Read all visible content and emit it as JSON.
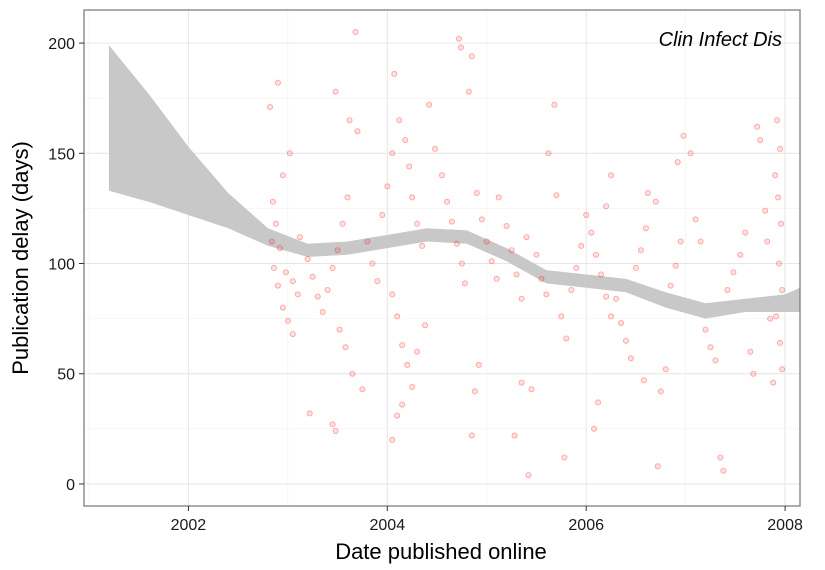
{
  "chart_data": {
    "type": "scatter",
    "title": "",
    "annotation": "Clin Infect Dis",
    "xlabel": "Date published online",
    "ylabel": "Publication delay (days)",
    "xlim": [
      2000.95,
      2008.15
    ],
    "ylim": [
      -10,
      215
    ],
    "x_ticks": [
      {
        "value": 2002,
        "label": "2002"
      },
      {
        "value": 2004,
        "label": "2004"
      },
      {
        "value": 2006,
        "label": "2006"
      },
      {
        "value": 2008,
        "label": "2008"
      }
    ],
    "y_ticks": [
      {
        "value": 0,
        "label": "0"
      },
      {
        "value": 50,
        "label": "50"
      },
      {
        "value": 100,
        "label": "100"
      },
      {
        "value": 150,
        "label": "150"
      },
      {
        "value": 200,
        "label": "200"
      }
    ],
    "grid": true,
    "point_color": "#ff0000",
    "band_color": "#c8c8c8",
    "smooth_band": [
      {
        "x": 2001.2,
        "lo": 133,
        "hi": 199
      },
      {
        "x": 2001.6,
        "lo": 128,
        "hi": 177
      },
      {
        "x": 2002.0,
        "lo": 122,
        "hi": 153
      },
      {
        "x": 2002.4,
        "lo": 116,
        "hi": 132
      },
      {
        "x": 2002.8,
        "lo": 108,
        "hi": 116
      },
      {
        "x": 2003.2,
        "lo": 103,
        "hi": 109
      },
      {
        "x": 2003.6,
        "lo": 104,
        "hi": 110
      },
      {
        "x": 2004.0,
        "lo": 107,
        "hi": 113
      },
      {
        "x": 2004.4,
        "lo": 110,
        "hi": 116
      },
      {
        "x": 2004.8,
        "lo": 109,
        "hi": 115
      },
      {
        "x": 2005.2,
        "lo": 101,
        "hi": 107
      },
      {
        "x": 2005.6,
        "lo": 91,
        "hi": 97
      },
      {
        "x": 2006.0,
        "lo": 89,
        "hi": 95
      },
      {
        "x": 2006.4,
        "lo": 87,
        "hi": 93
      },
      {
        "x": 2006.8,
        "lo": 80,
        "hi": 87
      },
      {
        "x": 2007.2,
        "lo": 75,
        "hi": 82
      },
      {
        "x": 2007.6,
        "lo": 78,
        "hi": 84
      },
      {
        "x": 2008.0,
        "lo": 78,
        "hi": 86
      },
      {
        "x": 2008.15,
        "lo": 78,
        "hi": 89
      }
    ],
    "points": [
      [
        2002.82,
        171
      ],
      [
        2002.9,
        182
      ],
      [
        2002.95,
        140
      ],
      [
        2003.02,
        150
      ],
      [
        2002.85,
        128
      ],
      [
        2002.88,
        118
      ],
      [
        2002.92,
        107
      ],
      [
        2002.98,
        96
      ],
      [
        2003.05,
        92
      ],
      [
        2003.1,
        86
      ],
      [
        2002.86,
        98
      ],
      [
        2002.9,
        90
      ],
      [
        2002.95,
        80
      ],
      [
        2003.0,
        74
      ],
      [
        2003.05,
        68
      ],
      [
        2002.84,
        110
      ],
      [
        2003.12,
        112
      ],
      [
        2003.2,
        102
      ],
      [
        2003.25,
        94
      ],
      [
        2003.3,
        85
      ],
      [
        2003.22,
        32
      ],
      [
        2003.35,
        78
      ],
      [
        2003.4,
        88
      ],
      [
        2003.45,
        98
      ],
      [
        2003.5,
        106
      ],
      [
        2003.55,
        118
      ],
      [
        2003.6,
        130
      ],
      [
        2003.62,
        165
      ],
      [
        2003.7,
        160
      ],
      [
        2003.48,
        178
      ],
      [
        2003.52,
        70
      ],
      [
        2003.58,
        62
      ],
      [
        2003.65,
        50
      ],
      [
        2003.75,
        43
      ],
      [
        2003.45,
        27
      ],
      [
        2003.48,
        24
      ],
      [
        2003.68,
        205
      ],
      [
        2003.8,
        110
      ],
      [
        2003.85,
        100
      ],
      [
        2003.9,
        92
      ],
      [
        2003.95,
        122
      ],
      [
        2004.0,
        135
      ],
      [
        2004.05,
        150
      ],
      [
        2004.07,
        186
      ],
      [
        2004.12,
        165
      ],
      [
        2004.18,
        156
      ],
      [
        2004.22,
        144
      ],
      [
        2004.25,
        130
      ],
      [
        2004.3,
        118
      ],
      [
        2004.35,
        108
      ],
      [
        2004.05,
        86
      ],
      [
        2004.1,
        76
      ],
      [
        2004.15,
        63
      ],
      [
        2004.2,
        54
      ],
      [
        2004.25,
        44
      ],
      [
        2004.1,
        31
      ],
      [
        2004.15,
        36
      ],
      [
        2004.05,
        20
      ],
      [
        2004.3,
        60
      ],
      [
        2004.38,
        72
      ],
      [
        2004.42,
        172
      ],
      [
        2004.48,
        152
      ],
      [
        2004.55,
        140
      ],
      [
        2004.6,
        128
      ],
      [
        2004.65,
        119
      ],
      [
        2004.7,
        109
      ],
      [
        2004.75,
        100
      ],
      [
        2004.78,
        91
      ],
      [
        2004.72,
        202
      ],
      [
        2004.74,
        198
      ],
      [
        2004.85,
        194
      ],
      [
        2004.82,
        178
      ],
      [
        2004.9,
        132
      ],
      [
        2004.95,
        120
      ],
      [
        2005.0,
        110
      ],
      [
        2005.05,
        101
      ],
      [
        2005.1,
        93
      ],
      [
        2004.88,
        42
      ],
      [
        2004.92,
        54
      ],
      [
        2004.85,
        22
      ],
      [
        2005.12,
        130
      ],
      [
        2005.2,
        117
      ],
      [
        2005.25,
        106
      ],
      [
        2005.3,
        95
      ],
      [
        2005.35,
        84
      ],
      [
        2005.28,
        22
      ],
      [
        2005.35,
        46
      ],
      [
        2005.45,
        43
      ],
      [
        2005.42,
        4
      ],
      [
        2005.4,
        112
      ],
      [
        2005.5,
        104
      ],
      [
        2005.55,
        93
      ],
      [
        2005.6,
        86
      ],
      [
        2005.62,
        150
      ],
      [
        2005.68,
        172
      ],
      [
        2005.7,
        131
      ],
      [
        2005.75,
        76
      ],
      [
        2005.8,
        66
      ],
      [
        2005.78,
        12
      ],
      [
        2005.85,
        88
      ],
      [
        2005.9,
        98
      ],
      [
        2005.95,
        108
      ],
      [
        2006.0,
        122
      ],
      [
        2006.05,
        114
      ],
      [
        2006.1,
        104
      ],
      [
        2006.15,
        95
      ],
      [
        2006.2,
        85
      ],
      [
        2006.25,
        76
      ],
      [
        2006.08,
        25
      ],
      [
        2006.12,
        37
      ],
      [
        2006.2,
        126
      ],
      [
        2006.25,
        140
      ],
      [
        2006.3,
        84
      ],
      [
        2006.35,
        73
      ],
      [
        2006.4,
        65
      ],
      [
        2006.45,
        57
      ],
      [
        2006.5,
        98
      ],
      [
        2006.55,
        106
      ],
      [
        2006.58,
        47
      ],
      [
        2006.6,
        116
      ],
      [
        2006.62,
        132
      ],
      [
        2006.7,
        128
      ],
      [
        2006.72,
        8
      ],
      [
        2006.75,
        42
      ],
      [
        2006.8,
        52
      ],
      [
        2006.85,
        90
      ],
      [
        2006.9,
        99
      ],
      [
        2006.95,
        110
      ],
      [
        2006.92,
        146
      ],
      [
        2006.98,
        158
      ],
      [
        2007.05,
        150
      ],
      [
        2007.1,
        120
      ],
      [
        2007.15,
        110
      ],
      [
        2007.2,
        70
      ],
      [
        2007.25,
        62
      ],
      [
        2007.3,
        56
      ],
      [
        2007.35,
        12
      ],
      [
        2007.38,
        6
      ],
      [
        2007.42,
        88
      ],
      [
        2007.48,
        96
      ],
      [
        2007.55,
        104
      ],
      [
        2007.6,
        114
      ],
      [
        2007.65,
        60
      ],
      [
        2007.68,
        50
      ],
      [
        2007.72,
        162
      ],
      [
        2007.75,
        156
      ],
      [
        2007.8,
        124
      ],
      [
        2007.82,
        110
      ],
      [
        2007.85,
        75
      ],
      [
        2007.88,
        46
      ],
      [
        2007.92,
        165
      ],
      [
        2007.95,
        152
      ],
      [
        2007.9,
        140
      ],
      [
        2007.93,
        130
      ],
      [
        2007.96,
        118
      ],
      [
        2007.94,
        100
      ],
      [
        2007.97,
        88
      ],
      [
        2007.91,
        76
      ],
      [
        2007.95,
        64
      ],
      [
        2007.97,
        52
      ]
    ]
  }
}
